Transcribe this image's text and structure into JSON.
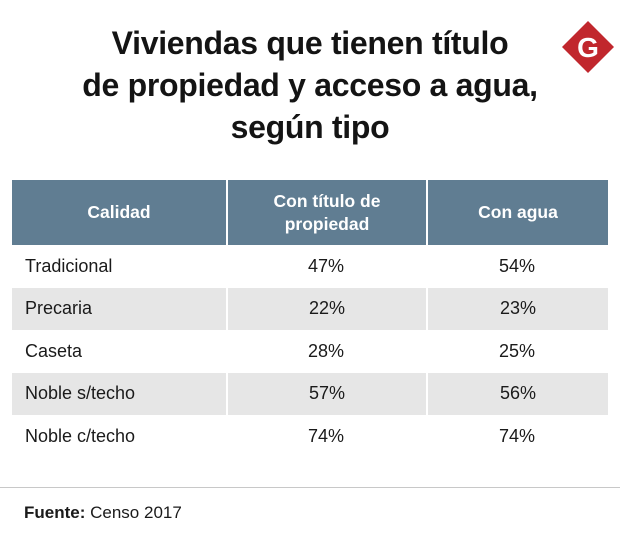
{
  "title_lines": [
    "Viviendas que tienen título",
    "de propiedad y acceso a agua,",
    "según tipo"
  ],
  "logo": {
    "letter": "G",
    "color": "#c1272d"
  },
  "colors": {
    "header_bg": "#607d92",
    "alt_row_bg": "#e6e6e6"
  },
  "table": {
    "headers": [
      "Calidad",
      "Con título de propiedad",
      "Con agua"
    ],
    "rows": [
      [
        "Tradicional",
        "47%",
        "54%"
      ],
      [
        "Precaria",
        "22%",
        "23%"
      ],
      [
        "Caseta",
        "28%",
        "25%"
      ],
      [
        "Noble s/techo",
        "57%",
        "56%"
      ],
      [
        "Noble c/techo",
        "74%",
        "74%"
      ]
    ]
  },
  "source": {
    "label": "Fuente:",
    "text": "Censo 2017"
  },
  "chart_data": {
    "type": "table",
    "columns": [
      "Calidad",
      "Con título de propiedad",
      "Con agua"
    ],
    "categories": [
      "Tradicional",
      "Precaria",
      "Caseta",
      "Noble s/techo",
      "Noble c/techo"
    ],
    "series": [
      {
        "name": "Con título de propiedad",
        "values": [
          47,
          22,
          28,
          57,
          74
        ]
      },
      {
        "name": "Con agua",
        "values": [
          54,
          23,
          25,
          56,
          74
        ]
      }
    ],
    "unit": "%"
  }
}
